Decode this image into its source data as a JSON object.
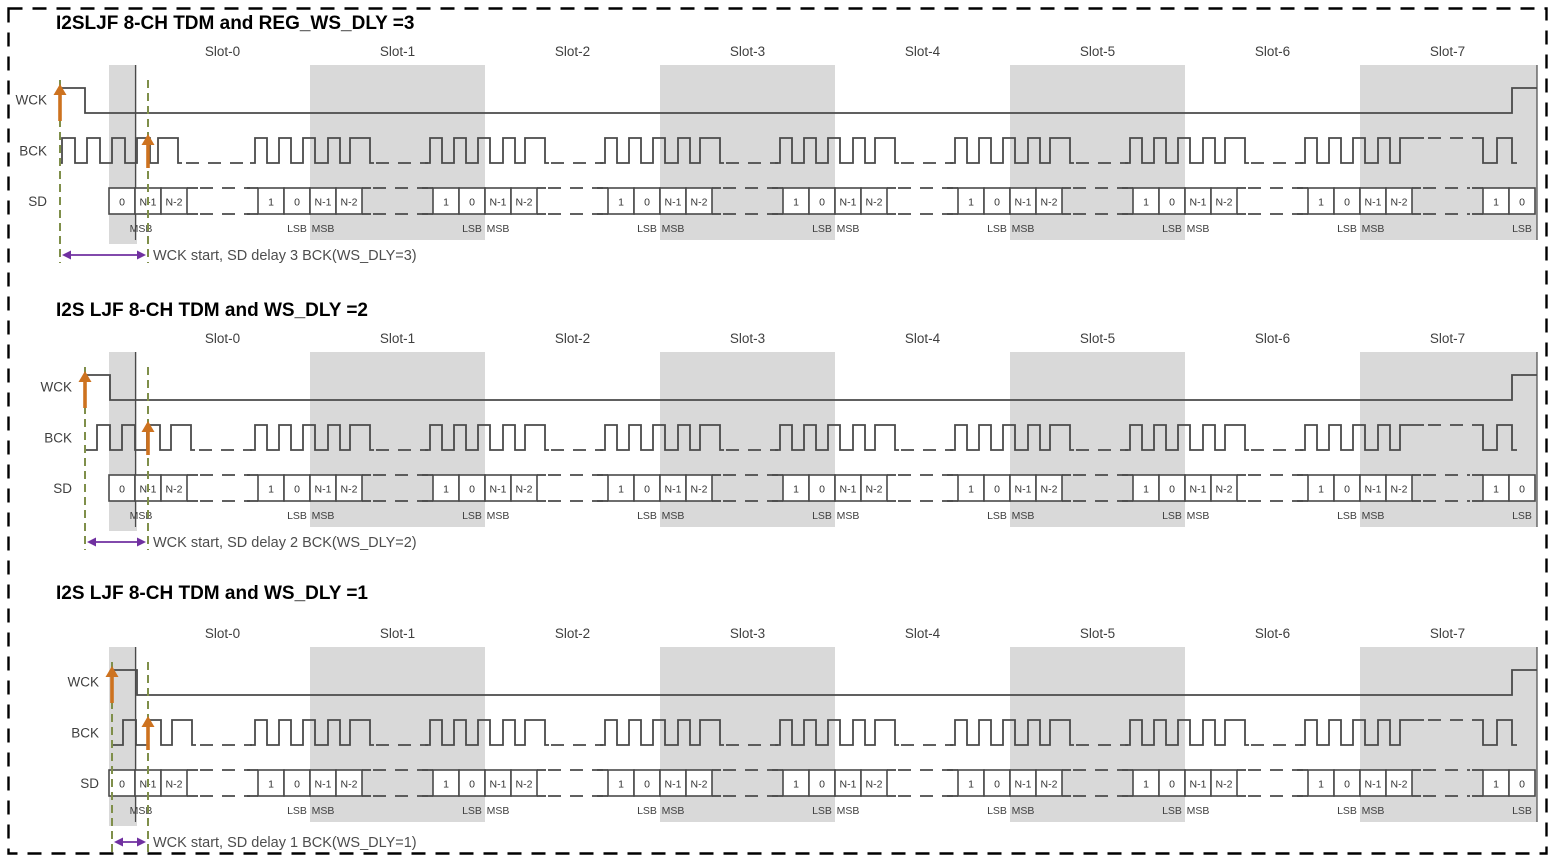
{
  "colors": {
    "signal": "#4a4a4a",
    "slot_shade": "#d9d9d9",
    "orange_marker": "#cd721f",
    "purple_arrow": "#7030a0",
    "green_guide": "#7f8f4a",
    "page_border": "#000000",
    "cell_fill": "#ffffff",
    "text": "#3f3f3f"
  },
  "slots": [
    "Slot-0",
    "Slot-1",
    "Slot-2",
    "Slot-3",
    "Slot-4",
    "Slot-5",
    "Slot-6",
    "Slot-7"
  ],
  "signals": [
    "WCK",
    "BCK",
    "SD"
  ],
  "bit_labels": {
    "msb": "MSB",
    "lsb": "LSB"
  },
  "sd_cells": {
    "start": [
      "0",
      "N-1",
      "N-2"
    ],
    "boundary": [
      "1",
      "0",
      "N-1",
      "N-2"
    ],
    "end": [
      "1",
      "0"
    ]
  },
  "panels": [
    {
      "title": "I2SLJF 8-CH TDM and REG_WS_DLY =3",
      "ws_dly": 3,
      "annotation": "WCK start, SD delay 3 BCK(WS_DLY=3)"
    },
    {
      "title": "I2S LJF 8-CH TDM and WS_DLY =2",
      "ws_dly": 2,
      "annotation": "WCK start, SD delay 2 BCK(WS_DLY=2)"
    },
    {
      "title": "I2S LJF 8-CH TDM and WS_DLY =1",
      "ws_dly": 1,
      "annotation": "WCK start, SD delay 1 BCK(WS_DLY=1)"
    }
  ]
}
